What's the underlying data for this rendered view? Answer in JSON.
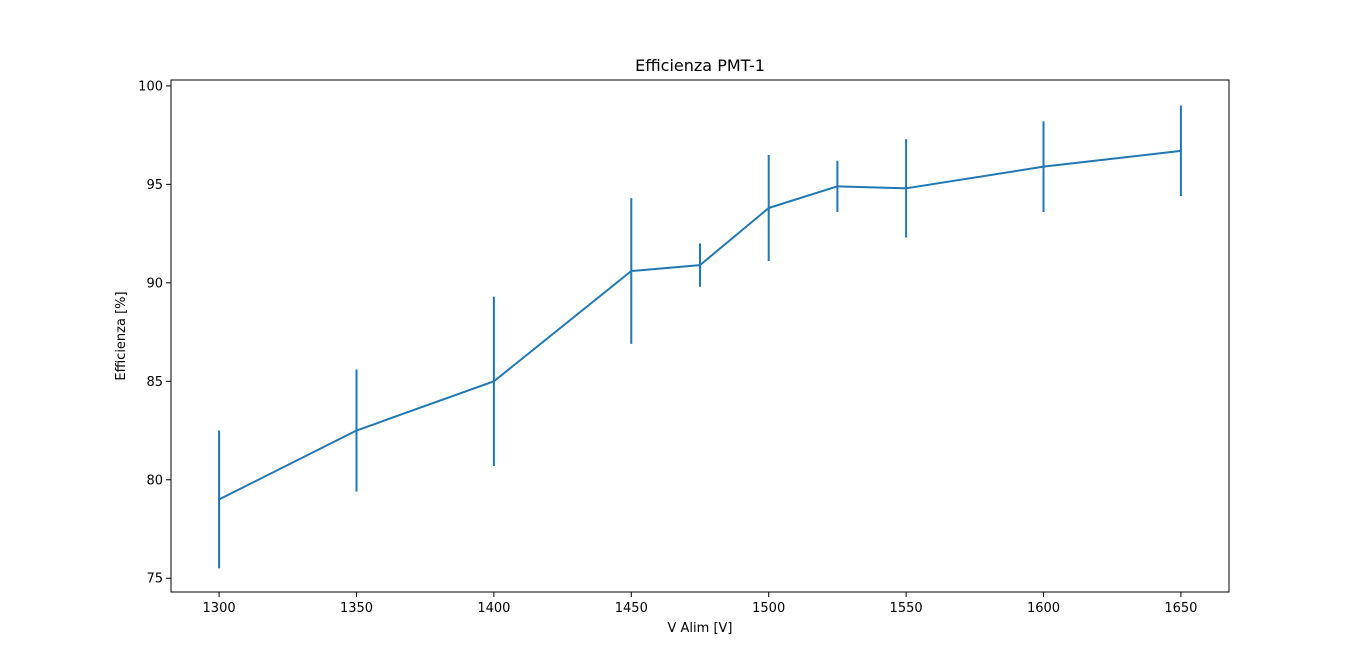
{
  "chart_data": {
    "type": "line",
    "title": "Efficienza PMT-1",
    "xlabel": "V Alim [V]",
    "ylabel": "Efficienza [%]",
    "xlim": [
      1282.5,
      1667.5
    ],
    "ylim": [
      74.3,
      100.3
    ],
    "xticks": [
      1300,
      1350,
      1400,
      1450,
      1500,
      1550,
      1600,
      1650
    ],
    "yticks": [
      75,
      80,
      85,
      90,
      95,
      100
    ],
    "grid": false,
    "legend": false,
    "series_color": "#1f77b4",
    "series": [
      {
        "x": [
          1300,
          1350,
          1400,
          1450,
          1475,
          1500,
          1525,
          1550,
          1600,
          1650
        ],
        "y": [
          79.0,
          82.5,
          85.0,
          90.6,
          90.9,
          93.8,
          94.9,
          94.8,
          95.9,
          96.7
        ],
        "yerr_low": [
          75.5,
          79.4,
          80.7,
          86.9,
          89.8,
          91.1,
          93.6,
          92.3,
          93.6,
          94.4
        ],
        "yerr_high": [
          82.5,
          85.6,
          89.3,
          94.3,
          92.0,
          96.5,
          96.2,
          97.3,
          98.2,
          99.0
        ]
      }
    ]
  }
}
